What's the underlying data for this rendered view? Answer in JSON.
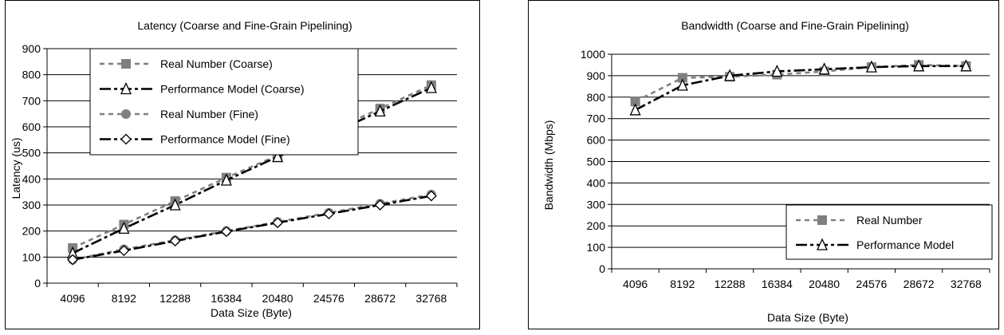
{
  "charts": [
    {
      "id": "latency",
      "chart_data": {
        "type": "line",
        "title": "Latency (Coarse and Fine-Grain Pipelining)",
        "xlabel": "Data Size (Byte)",
        "ylabel": "Latency (us)",
        "categories": [
          "4096",
          "8192",
          "12288",
          "16384",
          "20480",
          "24576",
          "28672",
          "32768"
        ],
        "ylim": [
          0,
          900
        ],
        "yticks": [
          0,
          100,
          200,
          300,
          400,
          500,
          600,
          700,
          800,
          900
        ],
        "grid": true,
        "legend_position": "top-left",
        "series": [
          {
            "name": "Real Number (Coarse)",
            "values": [
              135,
              225,
              315,
              405,
              490,
              580,
              670,
              760
            ],
            "color": "#808080",
            "dash": "6,5",
            "marker": "square"
          },
          {
            "name": "Performance Model (Coarse)",
            "values": [
              115,
              210,
              300,
              395,
              485,
              570,
              660,
              750
            ],
            "color": "#000000",
            "dash": "14,4,4,4",
            "marker": "triangle"
          },
          {
            "name": "Real Number (Fine)",
            "values": [
              90,
              130,
              165,
              200,
              235,
              270,
              305,
              340
            ],
            "color": "#808080",
            "dash": "6,5",
            "marker": "circle"
          },
          {
            "name": "Performance Model (Fine)",
            "values": [
              90,
              125,
              162,
              198,
              232,
              266,
              300,
              335
            ],
            "color": "#000000",
            "dash": "14,4,4,4",
            "marker": "diamond"
          }
        ]
      }
    },
    {
      "id": "bandwidth",
      "chart_data": {
        "type": "line",
        "title": "Bandwidth (Coarse and Fine-Grain Pipelining)",
        "xlabel": "Data Size (Byte)",
        "ylabel": "Bandwidth (Mbps)",
        "categories": [
          "4096",
          "8192",
          "12288",
          "16384",
          "20480",
          "24576",
          "28672",
          "32768"
        ],
        "ylim": [
          0,
          1000
        ],
        "yticks": [
          0,
          100,
          200,
          300,
          400,
          500,
          600,
          700,
          800,
          900,
          1000
        ],
        "grid": true,
        "legend_position": "bottom-right",
        "series": [
          {
            "name": "Real Number",
            "values": [
              780,
              890,
              895,
              905,
              920,
              940,
              950,
              945
            ],
            "color": "#808080",
            "dash": "6,5",
            "marker": "square"
          },
          {
            "name": "Performance Model",
            "values": [
              740,
              855,
              900,
              920,
              930,
              940,
              945,
              945
            ],
            "color": "#000000",
            "dash": "14,4,4,4",
            "marker": "triangle"
          }
        ]
      }
    }
  ]
}
